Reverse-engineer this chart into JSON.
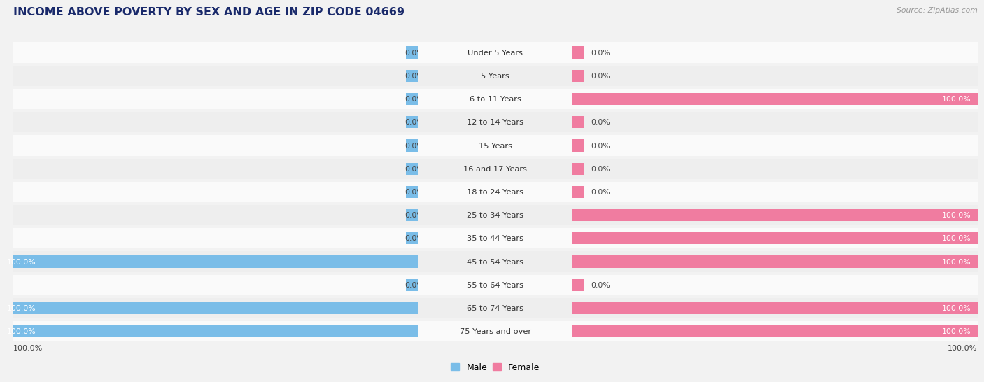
{
  "title": "INCOME ABOVE POVERTY BY SEX AND AGE IN ZIP CODE 04669",
  "source": "Source: ZipAtlas.com",
  "categories": [
    "Under 5 Years",
    "5 Years",
    "6 to 11 Years",
    "12 to 14 Years",
    "15 Years",
    "16 and 17 Years",
    "18 to 24 Years",
    "25 to 34 Years",
    "35 to 44 Years",
    "45 to 54 Years",
    "55 to 64 Years",
    "65 to 74 Years",
    "75 Years and over"
  ],
  "male_values": [
    0.0,
    0.0,
    0.0,
    0.0,
    0.0,
    0.0,
    0.0,
    0.0,
    0.0,
    100.0,
    0.0,
    100.0,
    100.0
  ],
  "female_values": [
    0.0,
    0.0,
    100.0,
    0.0,
    0.0,
    0.0,
    0.0,
    100.0,
    100.0,
    100.0,
    0.0,
    100.0,
    100.0
  ],
  "male_color": "#7abde8",
  "female_color": "#f07ca0",
  "male_label": "Male",
  "female_label": "Female",
  "bg_color": "#f2f2f2",
  "row_color_even": "#fafafa",
  "row_color_odd": "#eeeeee",
  "title_color": "#1a2a6b",
  "source_color": "#999999",
  "label_dark": "#444444",
  "bar_label_fontsize": 7.8,
  "cat_label_fontsize": 8.2,
  "title_fontsize": 11.5
}
